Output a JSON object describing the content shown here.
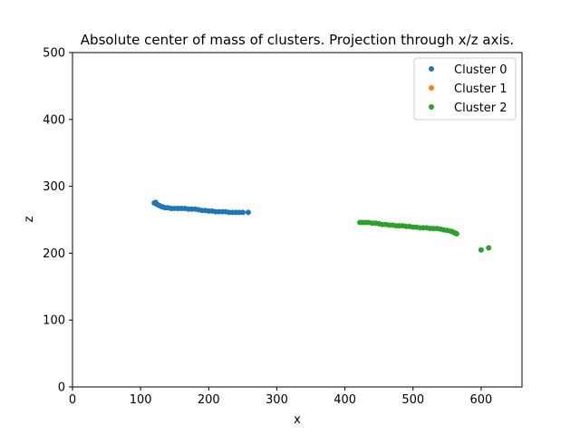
{
  "chart_data": {
    "type": "scatter",
    "title": "Absolute center of mass of clusters. Projection through x/z axis.",
    "xlabel": "x",
    "ylabel": "z",
    "xlim": [
      0,
      660
    ],
    "ylim": [
      0,
      500
    ],
    "xticks": [
      "0",
      "100",
      "200",
      "300",
      "400",
      "500",
      "600"
    ],
    "yticks": [
      "0",
      "100",
      "200",
      "300",
      "400",
      "500"
    ],
    "grid": false,
    "legend_position": "top-right",
    "series": [
      {
        "name": "Cluster 0",
        "color": "#1f77b4",
        "points": [
          [
            120,
            275
          ],
          [
            122,
            276
          ],
          [
            124,
            273
          ],
          [
            126,
            272
          ],
          [
            128,
            271
          ],
          [
            130,
            270
          ],
          [
            133,
            269
          ],
          [
            136,
            268
          ],
          [
            140,
            268
          ],
          [
            145,
            267
          ],
          [
            150,
            267
          ],
          [
            155,
            267
          ],
          [
            160,
            267
          ],
          [
            165,
            267
          ],
          [
            170,
            266
          ],
          [
            175,
            266
          ],
          [
            180,
            266
          ],
          [
            185,
            265
          ],
          [
            190,
            264
          ],
          [
            195,
            264
          ],
          [
            200,
            263
          ],
          [
            205,
            263
          ],
          [
            210,
            262
          ],
          [
            215,
            262
          ],
          [
            220,
            262
          ],
          [
            225,
            262
          ],
          [
            230,
            261
          ],
          [
            235,
            261
          ],
          [
            240,
            261
          ],
          [
            245,
            261
          ],
          [
            250,
            261
          ],
          [
            258,
            261
          ]
        ]
      },
      {
        "name": "Cluster 1",
        "color": "#ff7f0e",
        "points": []
      },
      {
        "name": "Cluster 2",
        "color": "#2ca02c",
        "points": [
          [
            422,
            246
          ],
          [
            426,
            246
          ],
          [
            430,
            246
          ],
          [
            435,
            246
          ],
          [
            440,
            245
          ],
          [
            445,
            245
          ],
          [
            450,
            244
          ],
          [
            455,
            243
          ],
          [
            460,
            243
          ],
          [
            465,
            242
          ],
          [
            470,
            242
          ],
          [
            475,
            241
          ],
          [
            480,
            241
          ],
          [
            485,
            241
          ],
          [
            490,
            240
          ],
          [
            495,
            240
          ],
          [
            500,
            239
          ],
          [
            505,
            239
          ],
          [
            510,
            238
          ],
          [
            515,
            238
          ],
          [
            520,
            238
          ],
          [
            525,
            237
          ],
          [
            530,
            237
          ],
          [
            535,
            237
          ],
          [
            540,
            236
          ],
          [
            545,
            235
          ],
          [
            550,
            234
          ],
          [
            555,
            233
          ],
          [
            558,
            232
          ],
          [
            560,
            231
          ],
          [
            562,
            230
          ],
          [
            564,
            229
          ],
          [
            600,
            205
          ],
          [
            611,
            208
          ]
        ]
      }
    ]
  }
}
